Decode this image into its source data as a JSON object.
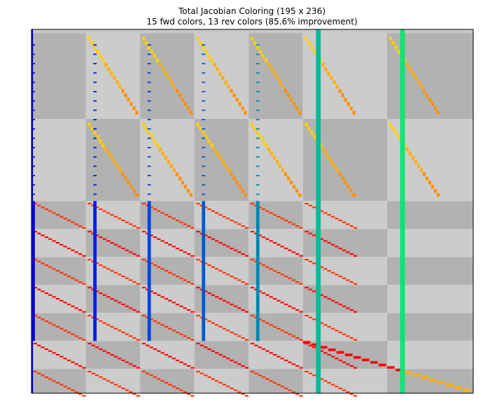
{
  "chart_data": {
    "type": "heatmap",
    "title": "Total Jacobian Coloring (195 x 236)",
    "subtitle": "15 fwd colors, 13 rev colors (85.6% improvement)",
    "matrix": {
      "rows": 195,
      "cols": 236
    },
    "colors": {
      "block_dark": "#b2b2b2",
      "block_light": "#cccccc",
      "forward": [
        "#0000dd",
        "#0020e0",
        "#0044dd",
        "#005acc",
        "#0070c0",
        "#0088b0",
        "#00a8a8",
        "#00bb99",
        "#00d070",
        "#00e676"
      ],
      "reverse": [
        "#ffff00",
        "#ffd000",
        "#ffb000",
        "#ff9000",
        "#ff7000",
        "#ff5000",
        "#ff3000",
        "#ff0000"
      ]
    }
  }
}
